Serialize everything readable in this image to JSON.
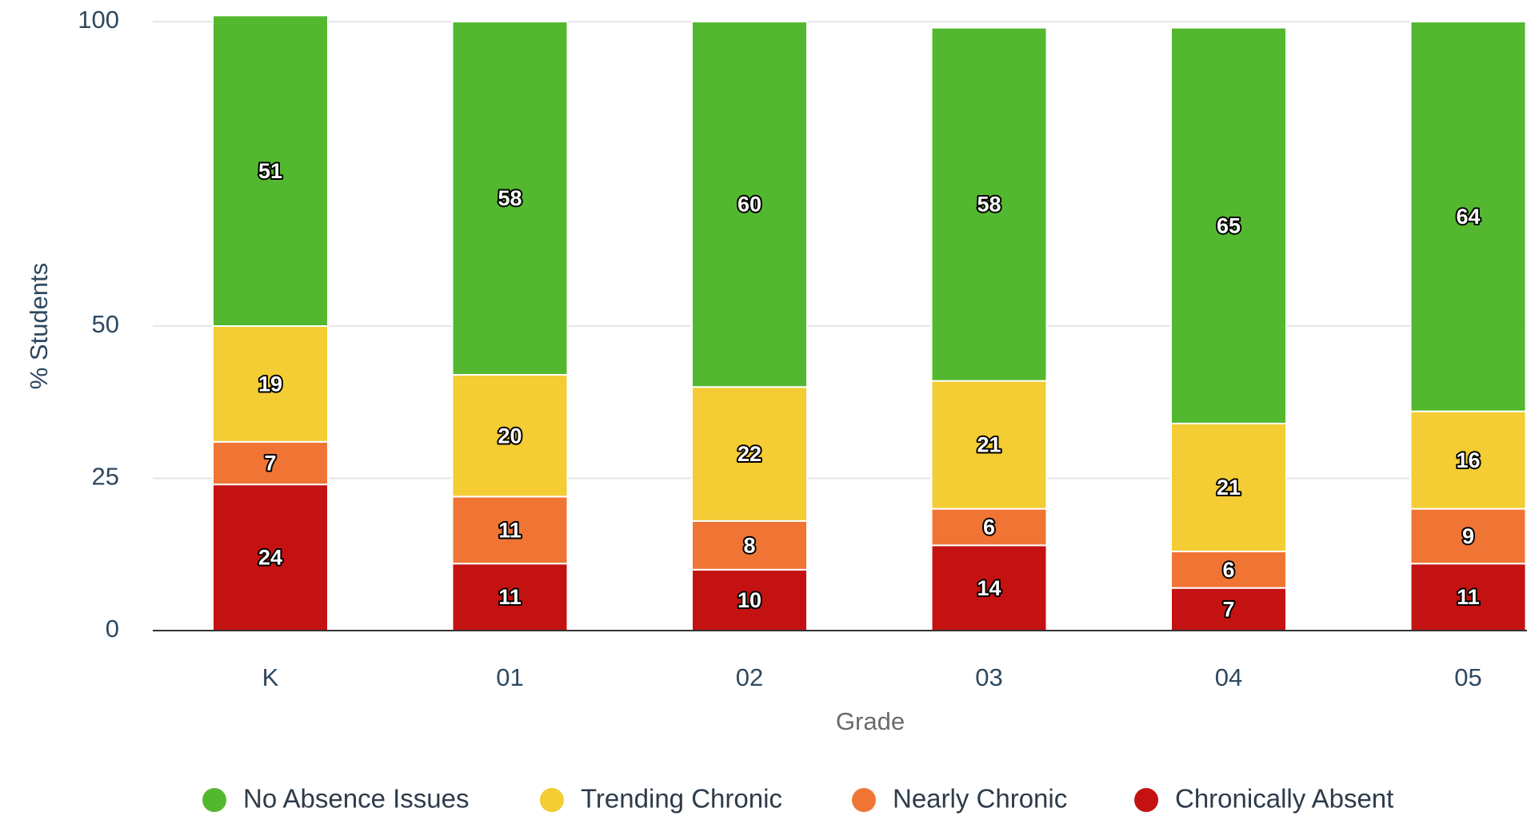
{
  "chart_data": {
    "type": "stacked-bar",
    "categories": [
      "K",
      "01",
      "02",
      "03",
      "04",
      "05"
    ],
    "series": [
      {
        "name": "Chronically Absent",
        "color": "#c41212",
        "values": [
          24,
          11,
          10,
          14,
          7,
          11
        ]
      },
      {
        "name": "Nearly Chronic",
        "color": "#f07535",
        "values": [
          7,
          11,
          8,
          6,
          6,
          9
        ]
      },
      {
        "name": "Trending Chronic",
        "color": "#f4cc33",
        "values": [
          19,
          20,
          22,
          21,
          21,
          16
        ]
      },
      {
        "name": "No Absence Issues",
        "color": "#53b82f",
        "values": [
          51,
          58,
          60,
          58,
          65,
          64
        ]
      }
    ],
    "xlabel": "Grade",
    "ylabel": "% Students",
    "ylim": [
      0,
      100
    ],
    "yticks": [
      0,
      25,
      50,
      100
    ],
    "grid": true
  }
}
